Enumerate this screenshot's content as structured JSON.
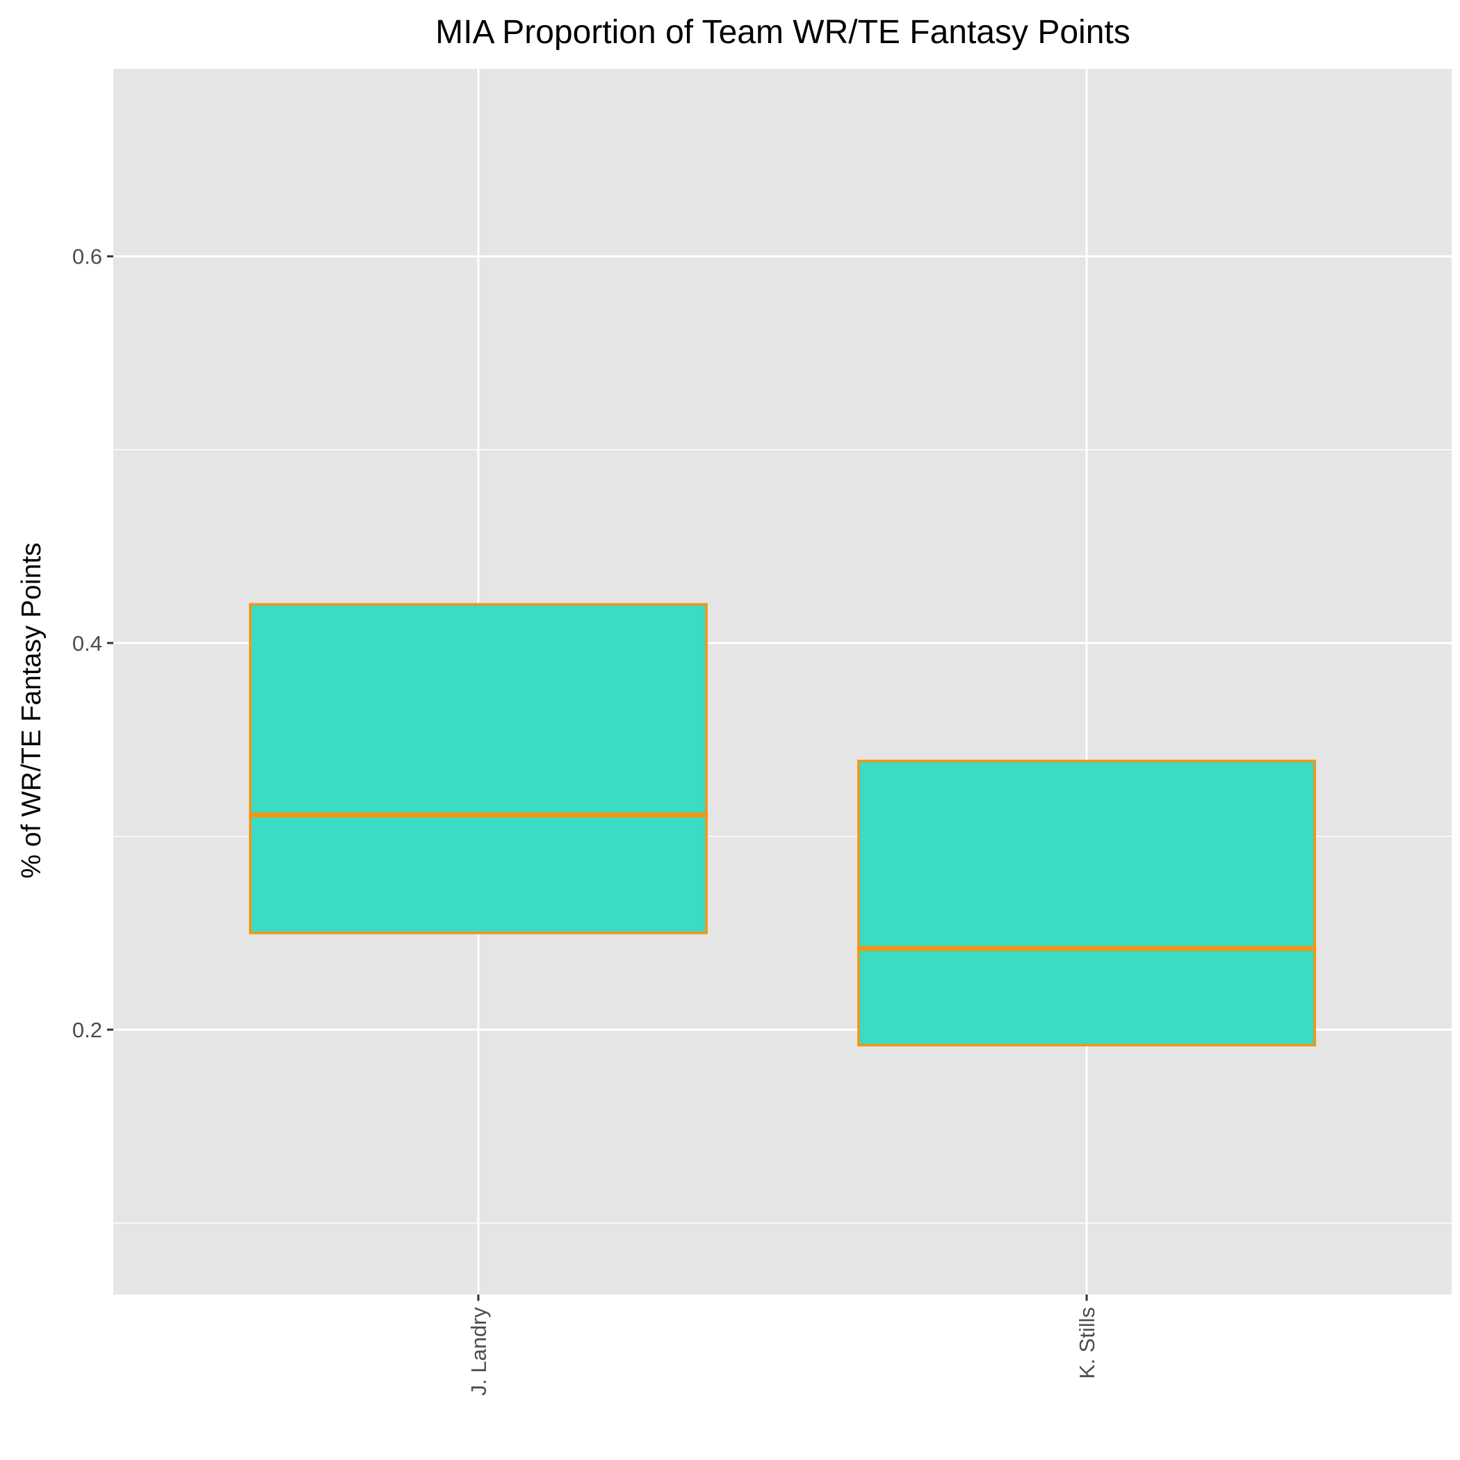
{
  "chart_data": {
    "type": "box",
    "title": "MIA Proportion of Team WR/TE Fantasy Points",
    "xlabel": "",
    "ylabel": "% of WR/TE Fantasy Points",
    "categories": [
      "J. Landry",
      "K. Stills"
    ],
    "boxes": [
      {
        "category": "J. Landry",
        "q1": 0.25,
        "median": 0.311,
        "q3": 0.42
      },
      {
        "category": "K. Stills",
        "q1": 0.192,
        "median": 0.242,
        "q3": 0.339
      }
    ],
    "ylim": [
      0.063,
      0.697
    ],
    "yticks": [
      0.2,
      0.4,
      0.6
    ],
    "ytick_labels": [
      "0.2",
      "0.4",
      "0.6"
    ],
    "grid": true,
    "colors": {
      "panel": "#e5e5e5",
      "grid": "#ffffff",
      "box_fill": "#3bdbc4",
      "box_stroke": "#f7940d"
    }
  }
}
